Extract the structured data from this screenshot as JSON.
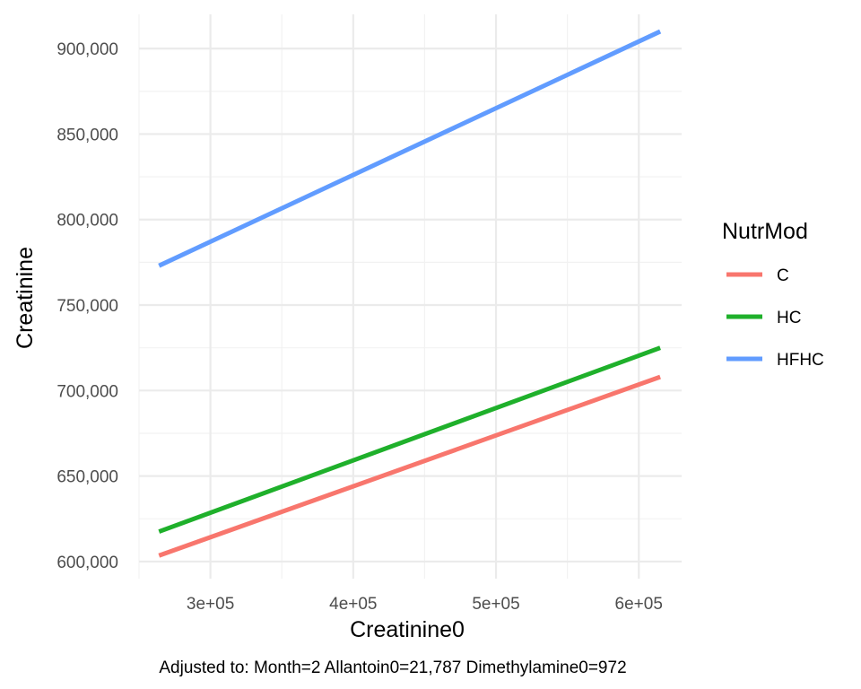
{
  "chart_data": {
    "type": "line",
    "xlabel": "Creatinine0",
    "ylabel": "Creatinine",
    "caption": "Adjusted to: Month=2 Allantoin0=21,787 Dimethylamine0=972",
    "xlim": [
      250000,
      630000
    ],
    "ylim": [
      590000,
      920000
    ],
    "x_ticks": [
      300000,
      400000,
      500000,
      600000
    ],
    "x_tick_labels": [
      "3e+05",
      "4e+05",
      "5e+05",
      "6e+05"
    ],
    "y_ticks": [
      600000,
      650000,
      700000,
      750000,
      800000,
      850000,
      900000
    ],
    "y_tick_labels": [
      "600,000",
      "650,000",
      "700,000",
      "750,000",
      "800,000",
      "850,000",
      "900,000"
    ],
    "grid": true,
    "legend": {
      "title": "NutrMod",
      "position": "right"
    },
    "series": [
      {
        "name": "C",
        "color": "#F8766D",
        "x": [
          264000,
          615000
        ],
        "y": [
          603500,
          708000
        ]
      },
      {
        "name": "HC",
        "color": "#1fb02b",
        "x": [
          264000,
          615000
        ],
        "y": [
          617500,
          725000
        ]
      },
      {
        "name": "HFHC",
        "color": "#619CFF",
        "x": [
          264000,
          615000
        ],
        "y": [
          773000,
          910000
        ]
      }
    ]
  }
}
